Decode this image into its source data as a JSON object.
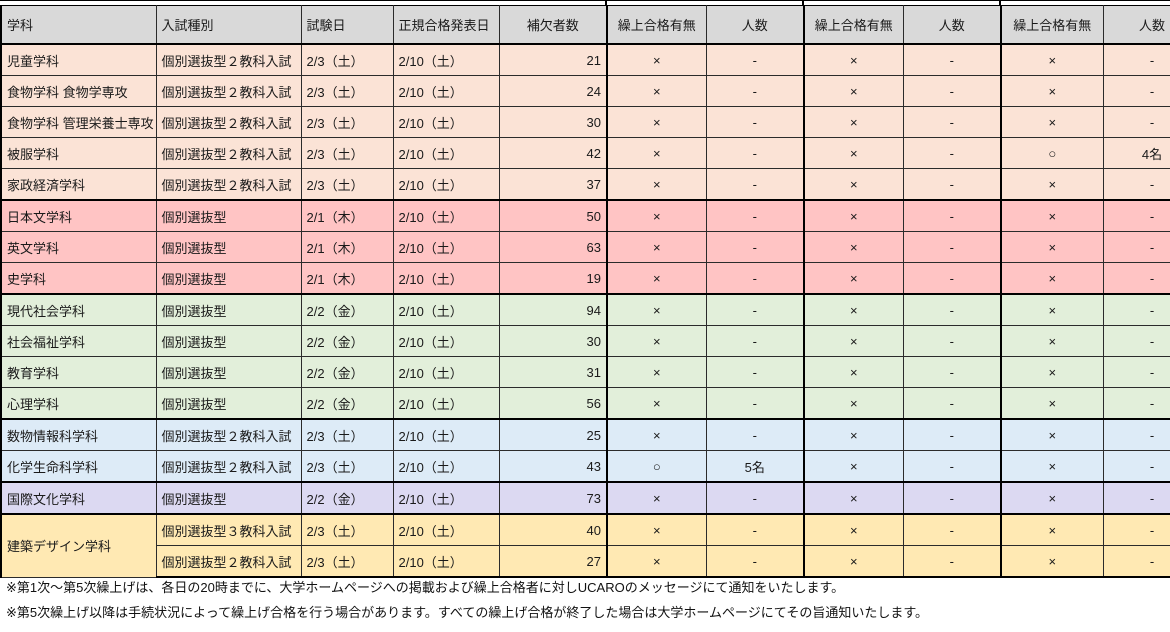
{
  "header": {
    "dept": "学科",
    "exam_type": "入試種別",
    "exam_date": "試験日",
    "announce_date": "正規合格発表日",
    "waitlist_count": "補欠者数",
    "rounds": [
      {
        "pass": "繰上合格有無",
        "count": "人数"
      },
      {
        "pass": "繰上合格有無",
        "count": "人数"
      },
      {
        "pass": "繰上合格有無",
        "count": "人数"
      }
    ]
  },
  "rows": [
    {
      "dept": "児童学科",
      "span": 1,
      "type": "個別選抜型２教科入試",
      "date": "2/3（土）",
      "announce": "2/10（土）",
      "waitlist": "21",
      "rounds": [
        [
          "×",
          "-"
        ],
        [
          "×",
          "-"
        ],
        [
          "×",
          "-"
        ]
      ],
      "color": "peach"
    },
    {
      "dept": "食物学科 食物学専攻",
      "span": 1,
      "type": "個別選抜型２教科入試",
      "date": "2/3（土）",
      "announce": "2/10（土）",
      "waitlist": "24",
      "rounds": [
        [
          "×",
          "-"
        ],
        [
          "×",
          "-"
        ],
        [
          "×",
          "-"
        ]
      ],
      "color": "peach"
    },
    {
      "dept": "食物学科 管理栄養士専攻",
      "span": 1,
      "type": "個別選抜型２教科入試",
      "date": "2/3（土）",
      "announce": "2/10（土）",
      "waitlist": "30",
      "rounds": [
        [
          "×",
          "-"
        ],
        [
          "×",
          "-"
        ],
        [
          "×",
          "-"
        ]
      ],
      "color": "peach"
    },
    {
      "dept": "被服学科",
      "span": 1,
      "type": "個別選抜型２教科入試",
      "date": "2/3（土）",
      "announce": "2/10（土）",
      "waitlist": "42",
      "rounds": [
        [
          "×",
          "-"
        ],
        [
          "×",
          "-"
        ],
        [
          "○",
          "4名"
        ]
      ],
      "color": "peach"
    },
    {
      "dept": "家政経済学科",
      "span": 1,
      "type": "個別選抜型２教科入試",
      "date": "2/3（土）",
      "announce": "2/10（土）",
      "waitlist": "37",
      "rounds": [
        [
          "×",
          "-"
        ],
        [
          "×",
          "-"
        ],
        [
          "×",
          "-"
        ]
      ],
      "color": "peach"
    },
    {
      "dept": "日本文学科",
      "span": 1,
      "type": "個別選抜型",
      "date": "2/1（木）",
      "announce": "2/10（土）",
      "waitlist": "50",
      "rounds": [
        [
          "×",
          "-"
        ],
        [
          "×",
          "-"
        ],
        [
          "×",
          "-"
        ]
      ],
      "color": "pink"
    },
    {
      "dept": "英文学科",
      "span": 1,
      "type": "個別選抜型",
      "date": "2/1（木）",
      "announce": "2/10（土）",
      "waitlist": "63",
      "rounds": [
        [
          "×",
          "-"
        ],
        [
          "×",
          "-"
        ],
        [
          "×",
          "-"
        ]
      ],
      "color": "pink"
    },
    {
      "dept": "史学科",
      "span": 1,
      "type": "個別選抜型",
      "date": "2/1（木）",
      "announce": "2/10（土）",
      "waitlist": "19",
      "rounds": [
        [
          "×",
          "-"
        ],
        [
          "×",
          "-"
        ],
        [
          "×",
          "-"
        ]
      ],
      "color": "pink"
    },
    {
      "dept": "現代社会学科",
      "span": 1,
      "type": "個別選抜型",
      "date": "2/2（金）",
      "announce": "2/10（土）",
      "waitlist": "94",
      "rounds": [
        [
          "×",
          "-"
        ],
        [
          "×",
          "-"
        ],
        [
          "×",
          "-"
        ]
      ],
      "color": "green"
    },
    {
      "dept": "社会福祉学科",
      "span": 1,
      "type": "個別選抜型",
      "date": "2/2（金）",
      "announce": "2/10（土）",
      "waitlist": "30",
      "rounds": [
        [
          "×",
          "-"
        ],
        [
          "×",
          "-"
        ],
        [
          "×",
          "-"
        ]
      ],
      "color": "green"
    },
    {
      "dept": "教育学科",
      "span": 1,
      "type": "個別選抜型",
      "date": "2/2（金）",
      "announce": "2/10（土）",
      "waitlist": "31",
      "rounds": [
        [
          "×",
          "-"
        ],
        [
          "×",
          "-"
        ],
        [
          "×",
          "-"
        ]
      ],
      "color": "green"
    },
    {
      "dept": "心理学科",
      "span": 1,
      "type": "個別選抜型",
      "date": "2/2（金）",
      "announce": "2/10（土）",
      "waitlist": "56",
      "rounds": [
        [
          "×",
          "-"
        ],
        [
          "×",
          "-"
        ],
        [
          "×",
          "-"
        ]
      ],
      "color": "green"
    },
    {
      "dept": "数物情報科学科",
      "span": 1,
      "type": "個別選抜型２教科入試",
      "date": "2/3（土）",
      "announce": "2/10（土）",
      "waitlist": "25",
      "rounds": [
        [
          "×",
          "-"
        ],
        [
          "×",
          "-"
        ],
        [
          "×",
          "-"
        ]
      ],
      "color": "blue"
    },
    {
      "dept": "化学生命科学科",
      "span": 1,
      "type": "個別選抜型２教科入試",
      "date": "2/3（土）",
      "announce": "2/10（土）",
      "waitlist": "43",
      "rounds": [
        [
          "○",
          "5名"
        ],
        [
          "×",
          "-"
        ],
        [
          "×",
          "-"
        ]
      ],
      "color": "blue"
    },
    {
      "dept": "国際文化学科",
      "span": 1,
      "type": "個別選抜型",
      "date": "2/2（金）",
      "announce": "2/10（土）",
      "waitlist": "73",
      "rounds": [
        [
          "×",
          "-"
        ],
        [
          "×",
          "-"
        ],
        [
          "×",
          "-"
        ]
      ],
      "color": "lavender"
    },
    {
      "dept": "建築デザイン学科",
      "span": 2,
      "type": "個別選抜型３教科入試",
      "date": "2/3（土）",
      "announce": "2/10（土）",
      "waitlist": "40",
      "rounds": [
        [
          "×",
          "-"
        ],
        [
          "×",
          "-"
        ],
        [
          "×",
          "-"
        ]
      ],
      "color": "yellow"
    },
    {
      "dept": null,
      "span": 0,
      "type": "個別選抜型２教科入試",
      "date": "2/3（土）",
      "announce": "2/10（土）",
      "waitlist": "27",
      "rounds": [
        [
          "×",
          "-"
        ],
        [
          "×",
          "-"
        ],
        [
          "×",
          "-"
        ]
      ],
      "color": "yellow"
    }
  ],
  "notes": [
    "※第1次～第5次繰上げは、各日の20時までに、大学ホームページへの掲載および繰上合格者に対しUCAROのメッセージにて通知をいたします。",
    "※第5次繰上げ以降は手続状況によって繰上げ合格を行う場合があります。すべての繰上げ合格が終了した場合は大学ホームページにてその旨通知いたします。"
  ],
  "colors": {
    "header": "#d9d9d9",
    "peach": "#fbe3d6",
    "pink": "#ffc4c4",
    "green": "#e2efda",
    "blue": "#ddebf7",
    "lavender": "#dcd9f2",
    "yellow": "#ffe9b3"
  }
}
